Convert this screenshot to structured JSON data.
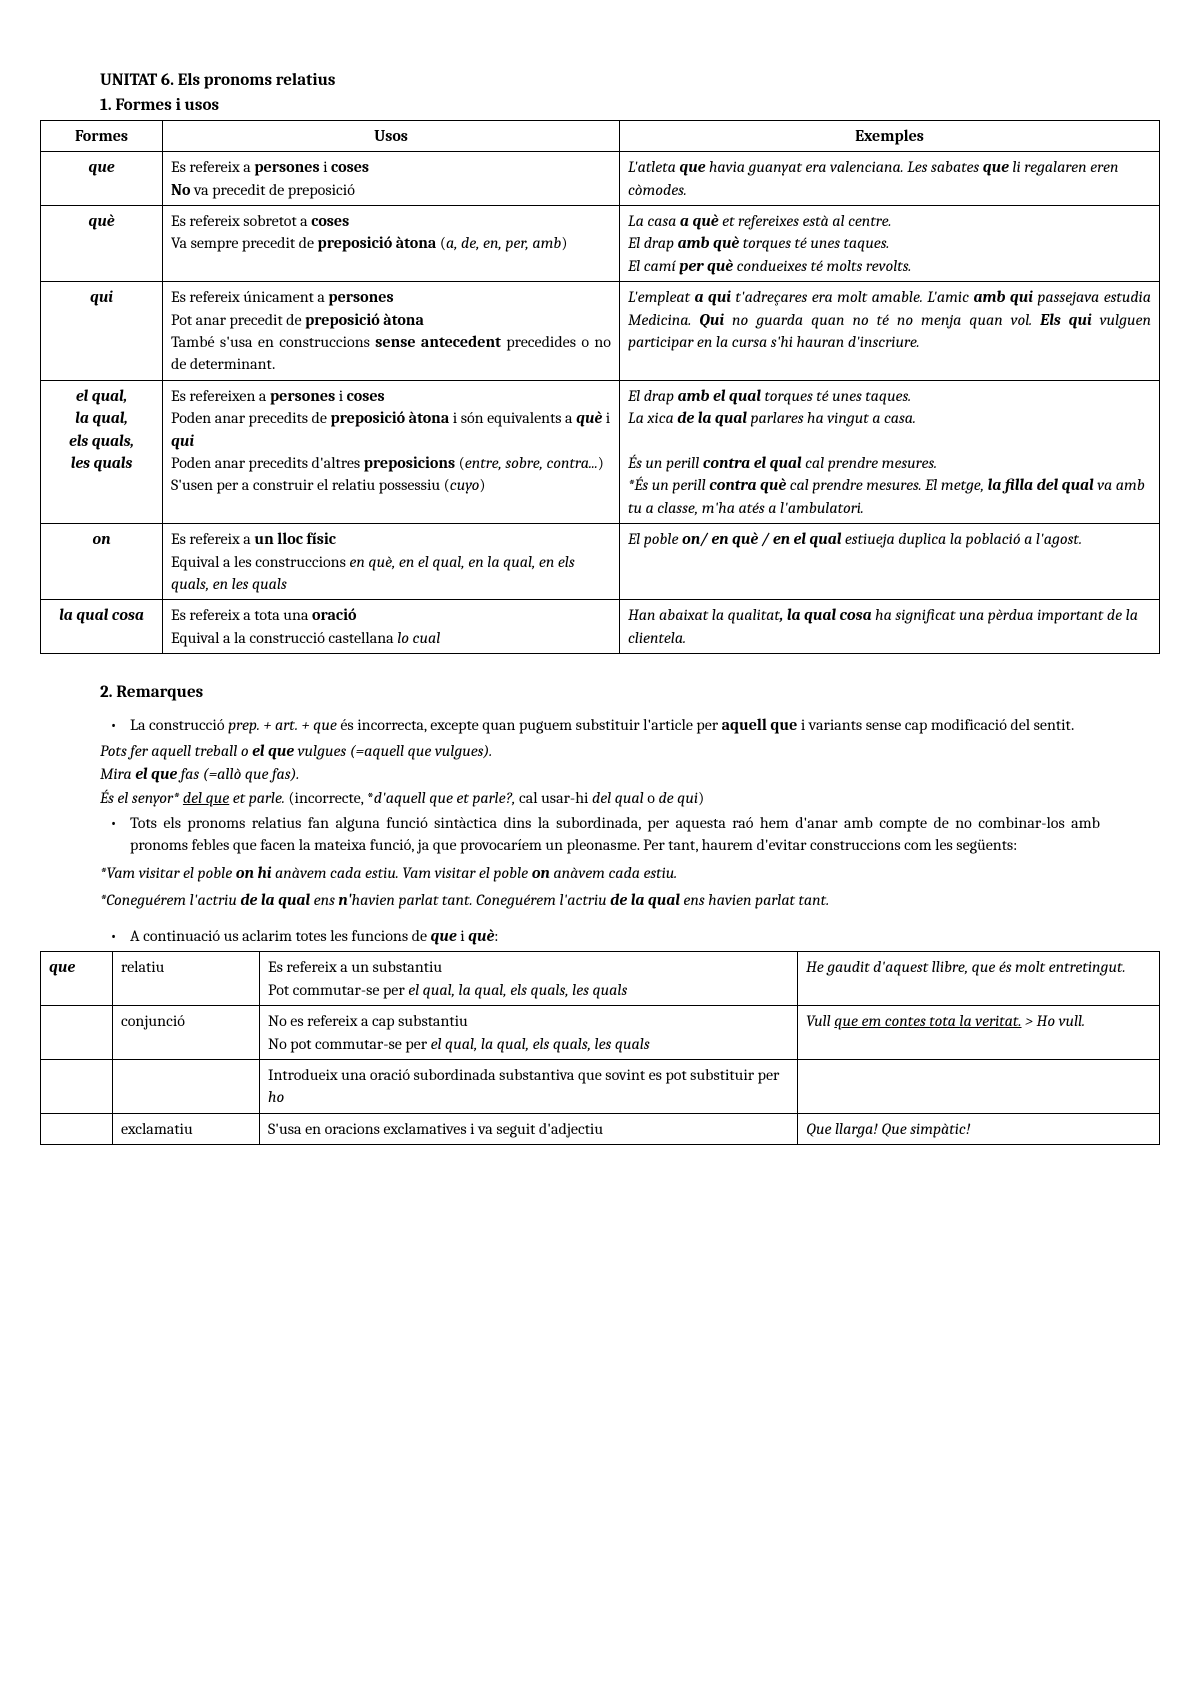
{
  "title": "UNITAT 6. Els pronoms relatius",
  "section1": "1.   Formes i usos",
  "t1": {
    "headers": {
      "c1": "Formes",
      "c2": "Usos",
      "c3": "Exemples"
    },
    "rows": [
      {
        "form": "que",
        "uso": "Es refereix a <span class='b'>persones</span> i <span class='b'>coses</span><br><span class='b'>No</span> va precedit de preposició",
        "ex": "L'atleta <span class='bi'>que</span> havia guanyat era valenciana. Les sabates <span class='bi'>que</span> li regalaren eren còmodes."
      },
      {
        "form": "què",
        "uso": "Es refereix sobretot a <span class='b'>coses</span><br>Va sempre precedit de <span class='b'>preposició àtona</span> (<span class='i'>a, de, en, per, amb</span>)",
        "ex": "La casa <span class='bi'>a què</span> et refereixes està al centre.<br>El drap <span class='bi'>amb què</span> torques té unes taques.<br>El camí <span class='bi'>per què</span> condueixes té molts revolts."
      },
      {
        "form": "qui",
        "uso": "<div class='just'>Es refereix únicament a <span class='b'>persones</span><br>Pot anar precedit de <span class='b'>preposició àtona</span><br>També s'usa en construccions <span class='b'>sense antecedent</span> precedides o no de determinant.</div>",
        "ex": "<div class='just'>L'empleat <span class='bi'>a qui</span> t'adreçares era molt amable. L'amic <span class='bi'>amb qui</span> passejava estudia Medicina. <span class='bi'>Qui</span> no guarda quan no té no menja quan vol. <span class='bi'>Els qui</span> vulguen participar en la cursa s'hi hauran d'inscriure.</div>"
      },
      {
        "form": "el qual,<br>la qual,<br>els quals,<br>les quals",
        "uso": "Es refereixen a <span class='b'>persones</span> i <span class='b'>coses</span><br>Poden anar precedits de <span class='b'>preposició àtona</span> i són equivalents a <span class='bi'>què</span> i <span class='bi'>qui</span><br>Poden anar precedits d'altres <span class='b'>preposicions</span> (<span class='i'>entre, sobre, contra...</span>)<br>S'usen per a construir el relatiu possessiu (<span class='i'>cuyo</span>)",
        "ex": "El drap <span class='bi'>amb el qual</span> torques té unes taques.<br>La xica <span class='bi'>de la qual</span> parlares ha vingut a casa.<br><br>És un perill <span class='bi'>contra el qual</span> cal prendre mesures.<br>*És un perill <span class='bi'>contra què</span> cal prendre mesures. El metge, <span class='bi'>la filla del qual</span> va amb tu a classe, m'ha atés a l'ambulatori."
      },
      {
        "form": "on",
        "uso": "Es refereix a <span class='b'>un lloc físic</span><br>Equival a les construccions <span class='i'>en què, en el qual, en la qual, en els quals, en les quals</span>",
        "ex": "El poble <span class='bi'>on/ en què / en el qual</span> estiueja duplica la població a l'agost."
      },
      {
        "form": "la qual cosa",
        "uso": "Es refereix a tota una <span class='b'>oració</span><br>Equival a la construcció castellana <span class='i'>lo cual</span>",
        "ex": "Han abaixat la qualitat<span class='bi'>, la qual cosa</span> ha significat una pèrdua important de la clientela."
      }
    ]
  },
  "section2": "2. Remarques",
  "remark1": "La construcció <span class='i'>prep. + art. + que</span> és incorrecta, excepte quan puguem substituir l'article per <span class='b'>aquell que</span> i variants sense cap modificació del sentit.",
  "ex1": "Pots fer aquell treball o <span class='bi'>el que</span> vulgues (=aquell que vulgues).",
  "ex2": "Mira <span class='bi'>el que</span> fas (=allò que fas).",
  "ex3": "És el senyor* <span class='u'>del que</span> et parle. <span style='font-style:normal'>(incorrecte, *</span>d'aquell que et parle?, <span style='font-style:normal'>cal usar-hi </span>del qual<span style='font-style:normal'> o </span>de qui<span style='font-style:normal'>)</span>",
  "remark2": "Tots els pronoms relatius fan alguna funció sintàctica dins la subordinada, per aquesta raó hem d'anar amb compte de no combinar-los amb pronoms febles que facen la mateixa funció, ja que provocaríem un pleonasme. Per tant, haurem d'evitar construccions com les següents:",
  "pleo1": "*Vam visitar el poble <span class='b'>on hi</span> anàvem cada estiu. Vam visitar el poble <span class='b'>on</span> anàvem cada estiu.",
  "pleo2": "*Coneguérem l'actriu <span class='b'>de la qual</span> ens <span class='b'>n'</span>havien parlat tant. Coneguérem l'actriu <span class='b'>de la qual</span> ens havien parlat tant.",
  "bulAfter": "A continuació us aclarim totes les funcions de <span class='bi'>que</span> i <span class='bi'>què</span>:",
  "t2": {
    "r": [
      {
        "a1": "que",
        "a2": "relatiu",
        "a3": "Es refereix a un substantiu<br>Pot commutar-se per <span class='i'>el qual, la qual, els quals, les quals</span>",
        "a4": "He gaudit d'aquest llibre, que és molt entretingut."
      },
      {
        "a1": "",
        "a2": "conjunció",
        "a3": "No es refereix a cap substantiu<br>No pot commutar-se per <span class='i'>el qual, la qual, els quals, les quals</span>",
        "a4": "Vull <span class='u'>que em contes tota la veritat.</span> &gt; Ho vull."
      },
      {
        "a1": "",
        "a2": "",
        "a3": "Introdueix una oració subordinada substantiva que sovint es pot substituir per <span class='i'>ho</span>",
        "a4": ""
      },
      {
        "a1": "",
        "a2": "exclamatiu",
        "a3": "S'usa en oracions exclamatives i va seguit d'adjectiu",
        "a4": "Que llarga! Que simpàtic!"
      }
    ]
  }
}
